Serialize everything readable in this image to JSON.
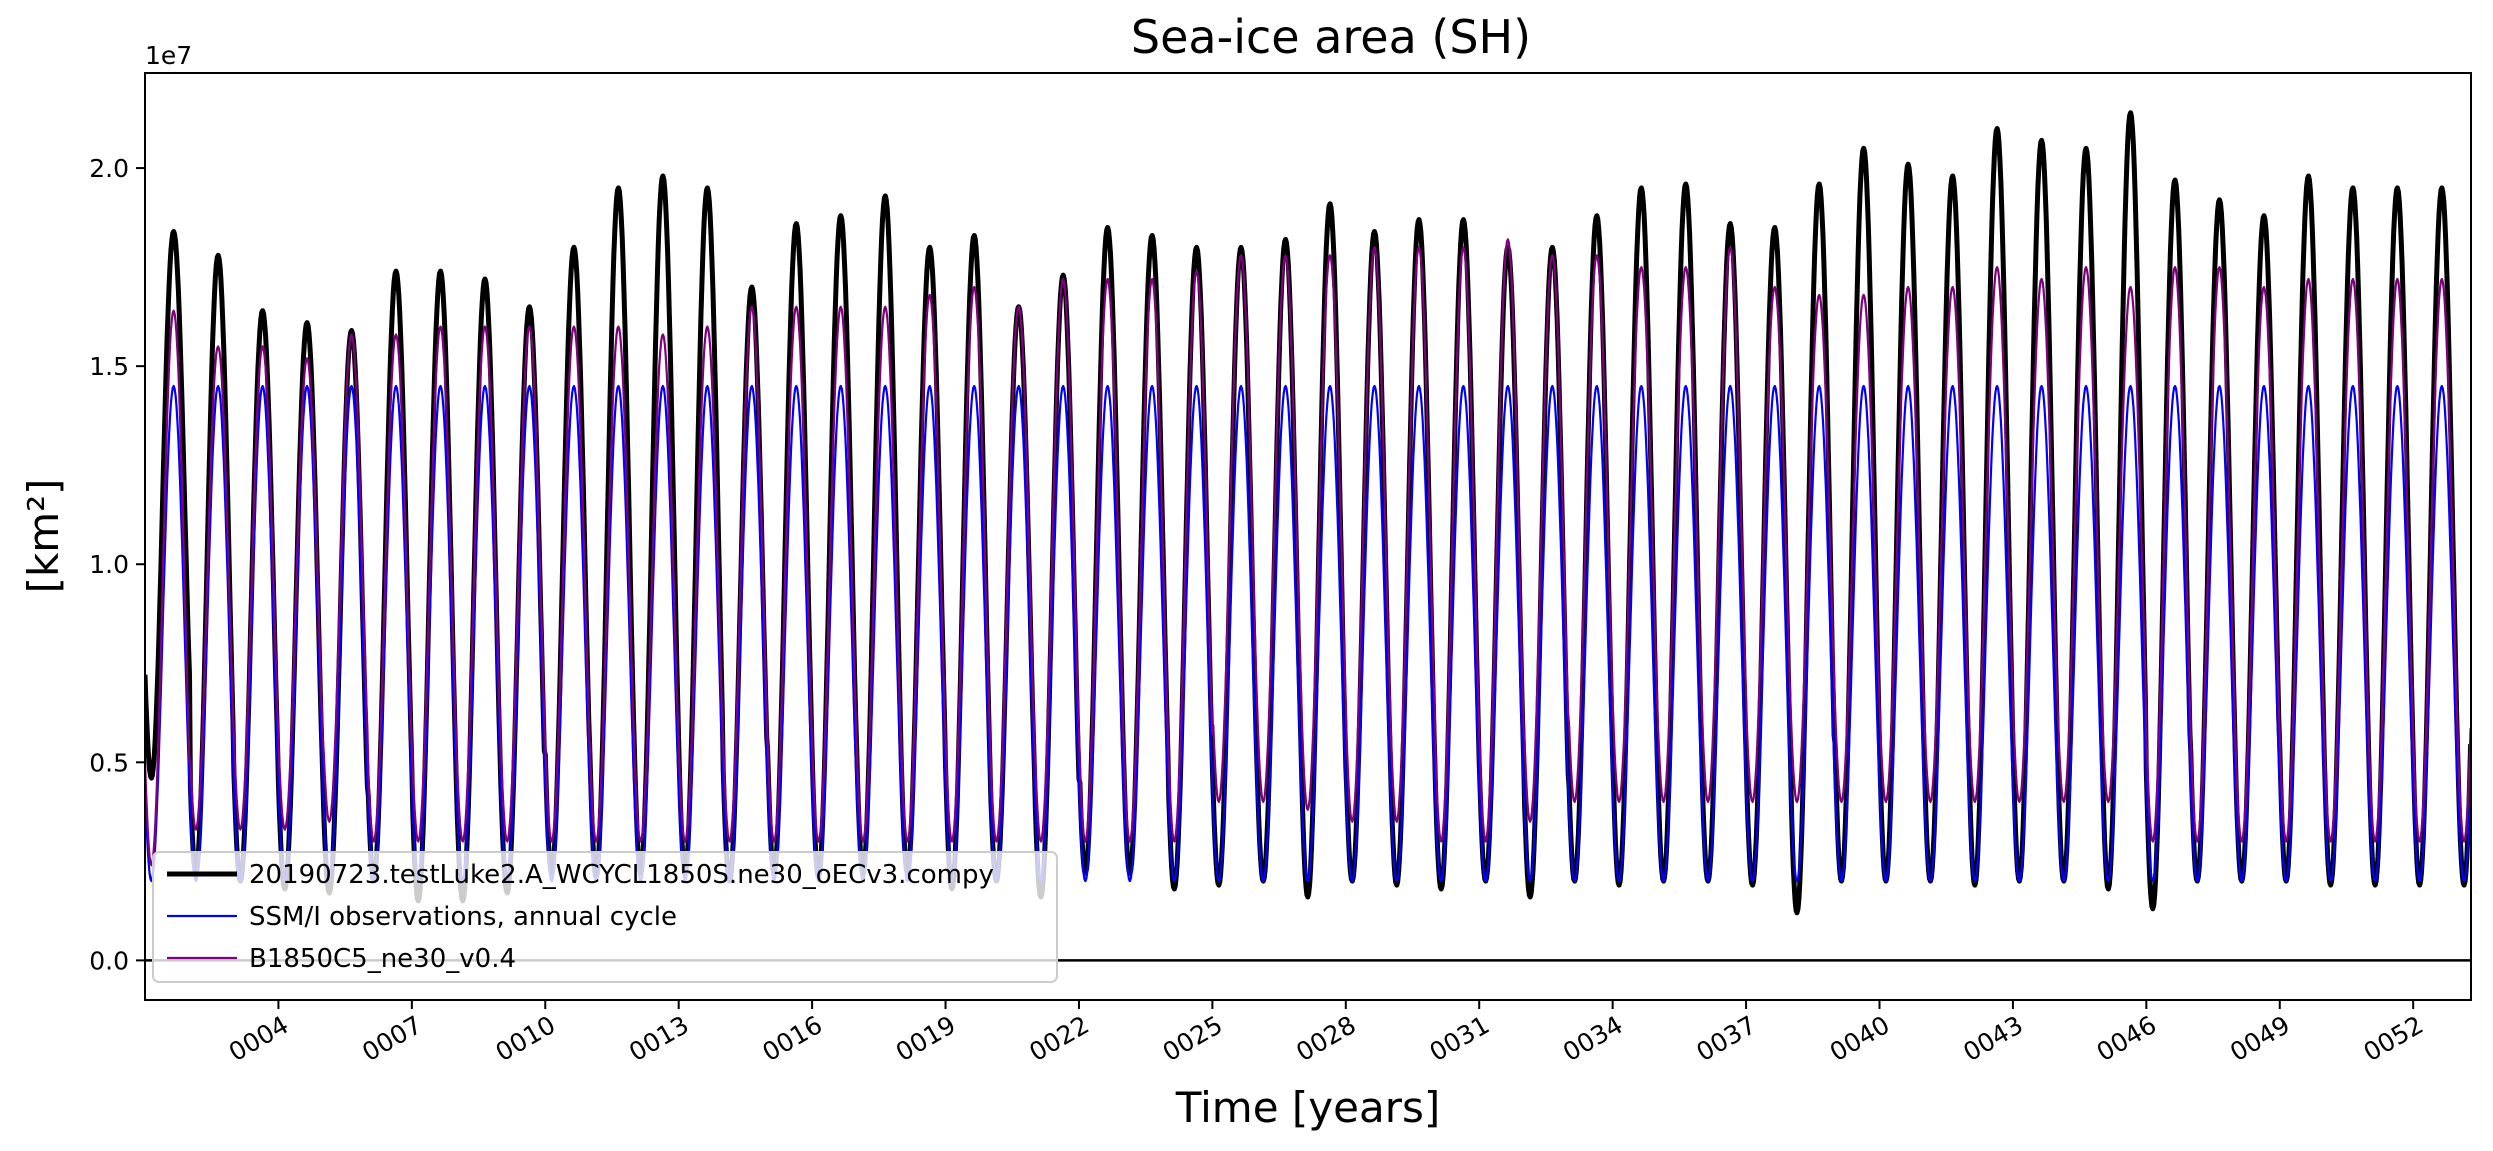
{
  "chart_data": {
    "type": "line",
    "title": "Sea-ice area (SH)",
    "xlabel": "Time [years]",
    "ylabel": "[km²]",
    "y_offset_label": "1e7",
    "xlim": [
      1.0,
      53.3
    ],
    "ylim": [
      -0.1,
      2.24
    ],
    "x_ticks": [
      4,
      7,
      10,
      13,
      16,
      19,
      22,
      25,
      28,
      31,
      34,
      37,
      40,
      43,
      46,
      49,
      52
    ],
    "x_tick_labels": [
      "0004",
      "0007",
      "0010",
      "0013",
      "0016",
      "0019",
      "0022",
      "0025",
      "0028",
      "0031",
      "0034",
      "0037",
      "0040",
      "0043",
      "0046",
      "0049",
      "0052"
    ],
    "y_ticks": [
      0.0,
      0.5,
      1.0,
      1.5,
      2.0
    ],
    "y_tick_labels": [
      "0.0",
      "0.5",
      "1.0",
      "1.5",
      "2.0"
    ],
    "hline_y": 0.0,
    "legend_position": "lower-left",
    "grid": false,
    "series": [
      {
        "name": "20190723.testLuke2.A_WCYCL1850S.ne30_oECv3.compy",
        "color": "#000000",
        "line_width": 5,
        "annual_max": [
          1.84,
          1.78,
          1.64,
          1.61,
          1.59,
          1.74,
          1.74,
          1.72,
          1.65,
          1.8,
          1.95,
          1.98,
          1.95,
          1.7,
          1.86,
          1.88,
          1.93,
          1.8,
          1.83,
          1.65,
          1.73,
          1.85,
          1.83,
          1.8,
          1.8,
          1.82,
          1.91,
          1.84,
          1.87,
          1.87,
          1.8,
          1.8,
          1.88,
          1.95,
          1.96,
          1.86,
          1.85,
          1.96,
          2.05,
          2.01,
          1.98,
          2.1,
          2.07,
          2.05,
          2.14,
          1.97,
          1.92,
          1.88,
          1.98,
          1.95,
          1.95
        ],
        "annual_min": [
          0.46,
          0.22,
          0.2,
          0.18,
          0.17,
          0.2,
          0.15,
          0.15,
          0.17,
          0.22,
          0.21,
          0.22,
          0.22,
          0.2,
          0.22,
          0.21,
          0.22,
          0.22,
          0.18,
          0.2,
          0.16,
          0.22,
          0.22,
          0.18,
          0.19,
          0.2,
          0.16,
          0.2,
          0.19,
          0.18,
          0.2,
          0.16,
          0.2,
          0.19,
          0.2,
          0.2,
          0.19,
          0.12,
          0.2,
          0.2,
          0.2,
          0.19,
          0.2,
          0.2,
          0.18,
          0.13,
          0.2,
          0.2,
          0.2,
          0.19,
          0.19
        ]
      },
      {
        "name": "SSM/I observations, annual cycle",
        "color": "#0000ff",
        "line_width": 2.2,
        "annual_max": [
          1.45
        ],
        "annual_min": [
          0.2
        ]
      },
      {
        "name": "B1850C5_ne30_v0.4",
        "color": "#800080",
        "line_width": 2.2,
        "annual_max": [
          1.64,
          1.55,
          1.55,
          1.52,
          1.58,
          1.58,
          1.6,
          1.6,
          1.6,
          1.6,
          1.6,
          1.58,
          1.6,
          1.65,
          1.65,
          1.65,
          1.65,
          1.68,
          1.7,
          1.65,
          1.72,
          1.72,
          1.72,
          1.74,
          1.78,
          1.78,
          1.78,
          1.8,
          1.8,
          1.8,
          1.82,
          1.78,
          1.78,
          1.75,
          1.75,
          1.8,
          1.7,
          1.68,
          1.68,
          1.7,
          1.7,
          1.75,
          1.72,
          1.75,
          1.7,
          1.75,
          1.75,
          1.7,
          1.72,
          1.72,
          1.72
        ],
        "annual_min": [
          0.24,
          0.33,
          0.33,
          0.33,
          0.35,
          0.3,
          0.3,
          0.3,
          0.3,
          0.3,
          0.3,
          0.3,
          0.3,
          0.3,
          0.3,
          0.3,
          0.3,
          0.3,
          0.3,
          0.3,
          0.3,
          0.3,
          0.3,
          0.3,
          0.4,
          0.4,
          0.38,
          0.35,
          0.35,
          0.3,
          0.3,
          0.35,
          0.4,
          0.4,
          0.4,
          0.4,
          0.4,
          0.4,
          0.4,
          0.4,
          0.4,
          0.4,
          0.4,
          0.4,
          0.4,
          0.3,
          0.3,
          0.3,
          0.3,
          0.3,
          0.3
        ]
      }
    ]
  }
}
